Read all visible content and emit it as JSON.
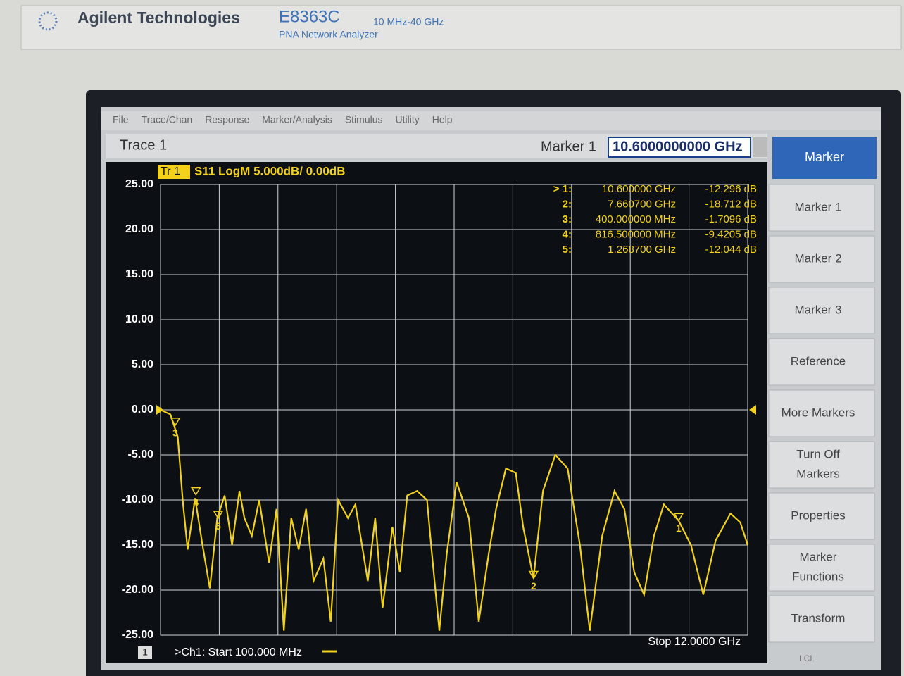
{
  "brand": {
    "company": "Agilent Technologies",
    "model": "E8363C",
    "range": "10 MHz-40 GHz",
    "product": "PNA Network Analyzer"
  },
  "menu": [
    "File",
    "Trace/Chan",
    "Response",
    "Marker/Analysis",
    "Stimulus",
    "Utility",
    "Help"
  ],
  "toolbar": {
    "trace": "Trace 1",
    "marker_label": "Marker 1",
    "marker_entry": "10.6000000000 GHz"
  },
  "chart_data": {
    "type": "line",
    "trace_tag": "Tr 1",
    "title": "S11 LogM 5.000dB/ 0.00dB",
    "color": "#f2d21b",
    "grid": true,
    "xlim": [
      0.1,
      12
    ],
    "ylim": [
      -25,
      25
    ],
    "yticks": [
      {
        "value": 25,
        "label": "25.00"
      },
      {
        "value": 20,
        "label": "20.00"
      },
      {
        "value": 15,
        "label": "15.00"
      },
      {
        "value": 10,
        "label": "10.00"
      },
      {
        "value": 5,
        "label": "5.00"
      },
      {
        "value": 0,
        "label": "0.00"
      },
      {
        "value": -5,
        "label": "-5.00"
      },
      {
        "value": -10,
        "label": "-10.00"
      },
      {
        "value": -15,
        "label": "-15.00"
      },
      {
        "value": -20,
        "label": "-20.00"
      },
      {
        "value": -25,
        "label": "-25.00"
      }
    ],
    "x": [
      0.1,
      0.3,
      0.45,
      0.55,
      0.65,
      0.8,
      0.95,
      1.1,
      1.25,
      1.4,
      1.55,
      1.7,
      1.8,
      1.95,
      2.1,
      2.3,
      2.45,
      2.6,
      2.75,
      2.9,
      3.05,
      3.2,
      3.4,
      3.55,
      3.7,
      3.9,
      4.05,
      4.3,
      4.45,
      4.6,
      4.8,
      4.95,
      5.1,
      5.3,
      5.5,
      5.6,
      5.75,
      5.9,
      6.1,
      6.35,
      6.55,
      6.75,
      6.9,
      7.1,
      7.3,
      7.45,
      7.66,
      7.85,
      8.1,
      8.35,
      8.6,
      8.8,
      9.05,
      9.3,
      9.5,
      9.7,
      9.9,
      10.1,
      10.3,
      10.6,
      10.85,
      11.1,
      11.35,
      11.65,
      11.85,
      12.0
    ],
    "values": [
      0,
      -0.5,
      -3,
      -10,
      -15.5,
      -9.8,
      -15,
      -19.8,
      -12,
      -9.5,
      -15,
      -9,
      -12,
      -14,
      -10,
      -17,
      -11,
      -24.5,
      -12,
      -15.5,
      -11,
      -19,
      -16.5,
      -23.5,
      -10,
      -12,
      -10.5,
      -19,
      -12,
      -22,
      -13,
      -18,
      -9.5,
      -9,
      -10,
      -16,
      -24.5,
      -16,
      -8,
      -12,
      -23.5,
      -16,
      -11,
      -6.5,
      -7,
      -13,
      -18.7,
      -9,
      -5,
      -6.5,
      -15,
      -24.5,
      -14,
      -9,
      -11,
      -18,
      -20.5,
      -14,
      -10.5,
      -12.3,
      -15,
      -20.5,
      -14.5,
      -11.5,
      -12.5,
      -15
    ],
    "markers": [
      {
        "id": "1",
        "row_label": "> 1:",
        "stimulus": "10.600000 GHz",
        "response": "-12.296 dB",
        "x": 10.6,
        "y": -12.296
      },
      {
        "id": "2",
        "row_label": "2:",
        "stimulus": "7.660700 GHz",
        "response": "-18.712 dB",
        "x": 7.6607,
        "y": -18.712
      },
      {
        "id": "3",
        "row_label": "3:",
        "stimulus": "400.000000 MHz",
        "response": "-1.7096 dB",
        "x": 0.4,
        "y": -1.7096
      },
      {
        "id": "4",
        "row_label": "4:",
        "stimulus": "816.500000 MHz",
        "response": "-9.4205 dB",
        "x": 0.8165,
        "y": -9.4205
      },
      {
        "id": "5",
        "row_label": "5:",
        "stimulus": "1.268700 GHz",
        "response": "-12.044 dB",
        "x": 1.2687,
        "y": -12.044
      }
    ],
    "channel": "1",
    "start": ">Ch1: Start 100.000 MHz",
    "stop": "Stop 12.0000 GHz"
  },
  "softkeys": {
    "title": "Marker",
    "keys": [
      [
        "Marker 1"
      ],
      [
        "Marker 2"
      ],
      [
        "Marker 3"
      ],
      [
        "Reference"
      ],
      [
        "More Markers"
      ],
      [
        "Turn Off",
        "Markers"
      ],
      [
        "Properties"
      ],
      [
        "Marker",
        "Functions"
      ],
      [
        "Transform"
      ]
    ]
  },
  "status": "LCL"
}
